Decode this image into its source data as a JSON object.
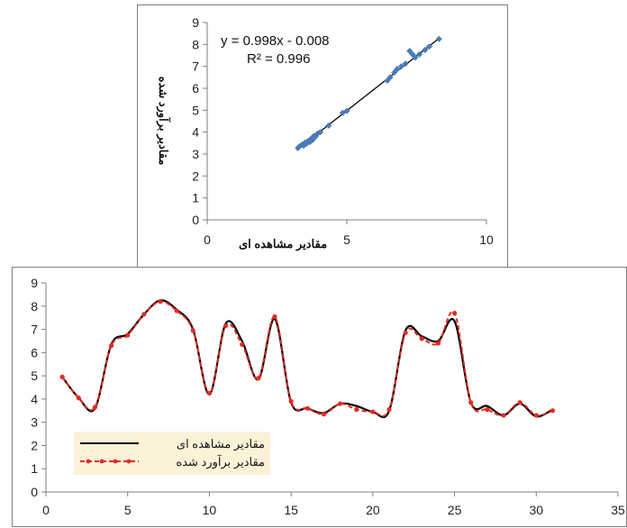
{
  "chart_data": [
    {
      "type": "scatter",
      "title": "",
      "xlabel": "مقادیر مشاهده ای",
      "ylabel": "مقادیر برآورد شده",
      "xlim": [
        0,
        10
      ],
      "ylim": [
        0,
        9
      ],
      "xticks": [
        "0",
        "5",
        "10"
      ],
      "yticks": [
        "0",
        "1",
        "2",
        "3",
        "4",
        "5",
        "6",
        "7",
        "8",
        "9"
      ],
      "grid": false,
      "trendline": {
        "slope": 0.998,
        "intercept": -0.008,
        "x_range": [
          3.2,
          8.3
        ]
      },
      "equation": "y = 0.998x - 0.008",
      "r2": "R² = 0.996",
      "points": [
        [
          3.25,
          3.28
        ],
        [
          3.32,
          3.36
        ],
        [
          3.4,
          3.43
        ],
        [
          3.45,
          3.38
        ],
        [
          3.5,
          3.52
        ],
        [
          3.55,
          3.47
        ],
        [
          3.6,
          3.58
        ],
        [
          3.68,
          3.55
        ],
        [
          3.72,
          3.7
        ],
        [
          3.78,
          3.65
        ],
        [
          3.82,
          3.82
        ],
        [
          3.88,
          3.8
        ],
        [
          3.95,
          3.93
        ],
        [
          4.05,
          4.0
        ],
        [
          4.35,
          4.3
        ],
        [
          4.85,
          4.88
        ],
        [
          5.0,
          4.97
        ],
        [
          6.45,
          6.35
        ],
        [
          6.55,
          6.5
        ],
        [
          6.7,
          6.72
        ],
        [
          6.8,
          6.88
        ],
        [
          6.95,
          7.0
        ],
        [
          7.1,
          7.12
        ],
        [
          7.25,
          7.7
        ],
        [
          7.35,
          7.55
        ],
        [
          7.45,
          7.4
        ],
        [
          7.6,
          7.55
        ],
        [
          7.8,
          7.75
        ],
        [
          7.95,
          7.9
        ],
        [
          8.3,
          8.25
        ]
      ]
    },
    {
      "type": "line",
      "title": "",
      "xlim": [
        0,
        35
      ],
      "ylim": [
        0,
        9
      ],
      "xticks": [
        "0",
        "5",
        "10",
        "15",
        "20",
        "25",
        "30",
        "35"
      ],
      "yticks": [
        "0",
        "1",
        "2",
        "3",
        "4",
        "5",
        "6",
        "7",
        "8",
        "9"
      ],
      "grid": false,
      "legend_position": "bottom-left",
      "x": [
        1,
        2,
        3,
        4,
        5,
        6,
        7,
        8,
        9,
        10,
        11,
        12,
        13,
        14,
        15,
        16,
        17,
        18,
        19,
        20,
        21,
        22,
        23,
        24,
        25,
        26,
        27,
        28,
        29,
        30,
        31
      ],
      "series": [
        {
          "name": "مقادیر مشاهده ای",
          "color": "#000000",
          "dashed": false,
          "values": [
            4.95,
            4.05,
            3.6,
            6.35,
            6.8,
            7.65,
            8.25,
            7.85,
            7.0,
            4.2,
            7.25,
            6.5,
            4.85,
            7.45,
            3.85,
            3.6,
            3.4,
            3.8,
            3.7,
            3.45,
            3.5,
            6.95,
            6.7,
            6.5,
            7.35,
            3.85,
            3.7,
            3.3,
            3.8,
            3.25,
            3.55
          ]
        },
        {
          "name": "مقادیر برآورد شده",
          "color": "#e32b22",
          "dashed": true,
          "values": [
            4.95,
            4.05,
            3.65,
            6.3,
            6.75,
            7.65,
            8.2,
            7.8,
            6.95,
            4.25,
            7.15,
            6.35,
            4.9,
            7.55,
            3.9,
            3.6,
            3.35,
            3.8,
            3.55,
            3.45,
            3.55,
            6.85,
            6.6,
            6.4,
            7.7,
            3.85,
            3.55,
            3.3,
            3.85,
            3.3,
            3.5
          ]
        }
      ]
    }
  ]
}
